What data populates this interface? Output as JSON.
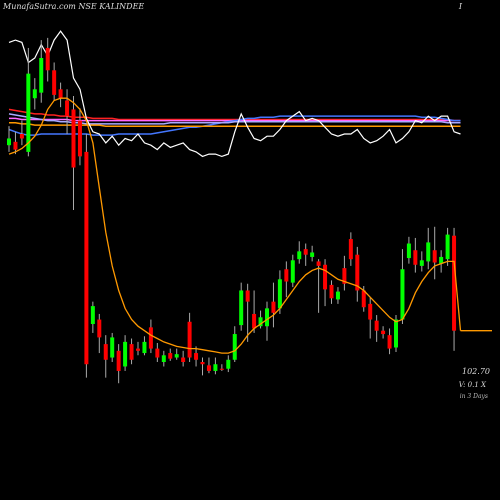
{
  "header": {
    "title": "MunafaSutra.com NSE KALINDEE",
    "corner_label": "I"
  },
  "footer": {
    "price_text": "102.70",
    "volume_text": "V: 0.1 X",
    "days_text": "in 3 Days"
  },
  "colors": {
    "background": "#000000",
    "up": "#00ff00",
    "down": "#ff0000",
    "wick": "#aaaaaa",
    "moving_average": "#ff9900"
  },
  "chart_data": {
    "type": "candlestick",
    "title": "MunafaSutra.com NSE KALINDEE",
    "last_price": 102.7,
    "volume_ratio_label": "V: 0.1 X",
    "horizon_label": "in 3 Days",
    "candles": [
      {
        "o": 118,
        "c": 124,
        "h": 135,
        "l": 112
      },
      {
        "o": 121,
        "c": 114,
        "h": 130,
        "l": 110
      },
      {
        "o": 128,
        "c": 124,
        "h": 140,
        "l": 118
      },
      {
        "o": 112,
        "c": 182,
        "h": 205,
        "l": 108
      },
      {
        "o": 160,
        "c": 168,
        "h": 178,
        "l": 150
      },
      {
        "o": 165,
        "c": 196,
        "h": 212,
        "l": 156
      },
      {
        "o": 205,
        "c": 185,
        "h": 214,
        "l": 175
      },
      {
        "o": 185,
        "c": 163,
        "h": 192,
        "l": 158
      },
      {
        "o": 168,
        "c": 160,
        "h": 174,
        "l": 152
      },
      {
        "o": 158,
        "c": 144,
        "h": 168,
        "l": 128
      },
      {
        "o": 150,
        "c": 98,
        "h": 162,
        "l": 60
      },
      {
        "o": 140,
        "c": 108,
        "h": 151,
        "l": 100
      },
      {
        "o": 112,
        "c": -78,
        "h": 128,
        "l": -90
      },
      {
        "o": -42,
        "c": -26,
        "h": -22,
        "l": -50
      },
      {
        "o": -38,
        "c": -54,
        "h": -33,
        "l": -68
      },
      {
        "o": -60,
        "c": -74,
        "h": -52,
        "l": -90
      },
      {
        "o": -72,
        "c": -54,
        "h": -50,
        "l": -76
      },
      {
        "o": -66,
        "c": -84,
        "h": -60,
        "l": -95
      },
      {
        "o": -80,
        "c": -58,
        "h": -52,
        "l": -84
      },
      {
        "o": -60,
        "c": -74,
        "h": -55,
        "l": -78
      },
      {
        "o": -64,
        "c": -66,
        "h": -58,
        "l": -70
      },
      {
        "o": -68,
        "c": -58,
        "h": -53,
        "l": -70
      },
      {
        "o": -45,
        "c": -64,
        "h": -38,
        "l": -68
      },
      {
        "o": -64,
        "c": -72,
        "h": -59,
        "l": -76
      },
      {
        "o": -76,
        "c": -70,
        "h": -66,
        "l": -80
      },
      {
        "o": -68,
        "c": -73,
        "h": -64,
        "l": -75
      },
      {
        "o": -72,
        "c": -69,
        "h": -64,
        "l": -74
      },
      {
        "o": -72,
        "c": -76,
        "h": -66,
        "l": -80
      },
      {
        "o": -40,
        "c": -72,
        "h": -32,
        "l": -76
      },
      {
        "o": -68,
        "c": -74,
        "h": -62,
        "l": -80
      },
      {
        "o": -76,
        "c": -78,
        "h": -72,
        "l": -88
      },
      {
        "o": -79,
        "c": -84,
        "h": -72,
        "l": -86
      },
      {
        "o": -84,
        "c": -78,
        "h": -72,
        "l": -87
      },
      {
        "o": -82,
        "c": -83,
        "h": -78,
        "l": -84
      },
      {
        "o": -82,
        "c": -74,
        "h": -70,
        "l": -85
      },
      {
        "o": -74,
        "c": -51,
        "h": -44,
        "l": -76
      },
      {
        "o": -43,
        "c": -12,
        "h": -5,
        "l": -48
      },
      {
        "o": -12,
        "c": -22,
        "h": -6,
        "l": -58
      },
      {
        "o": -33,
        "c": -46,
        "h": -12,
        "l": -50
      },
      {
        "o": -44,
        "c": -36,
        "h": -30,
        "l": -46
      },
      {
        "o": -44,
        "c": -28,
        "h": -22,
        "l": -57
      },
      {
        "o": -22,
        "c": -32,
        "h": -5,
        "l": -45
      },
      {
        "o": -28,
        "c": -2,
        "h": 6,
        "l": -33
      },
      {
        "o": 7,
        "c": -4,
        "h": 14,
        "l": -18
      },
      {
        "o": -5,
        "c": 15,
        "h": 20,
        "l": -9
      },
      {
        "o": 16,
        "c": 23,
        "h": 32,
        "l": 12
      },
      {
        "o": 25,
        "c": 20,
        "h": 30,
        "l": 10
      },
      {
        "o": 18,
        "c": 22,
        "h": 28,
        "l": 14
      },
      {
        "o": 14,
        "c": 10,
        "h": 16,
        "l": -32
      },
      {
        "o": 11,
        "c": -11,
        "h": 16,
        "l": -26
      },
      {
        "o": -7,
        "c": -19,
        "h": -3,
        "l": -24
      },
      {
        "o": -20,
        "c": -13,
        "h": -9,
        "l": -24
      },
      {
        "o": 8,
        "c": -6,
        "h": 19,
        "l": -12
      },
      {
        "o": 34,
        "c": 16,
        "h": 40,
        "l": 10
      },
      {
        "o": 20,
        "c": -12,
        "h": 27,
        "l": -22
      },
      {
        "o": -12,
        "c": -27,
        "h": -8,
        "l": -31
      },
      {
        "o": -24,
        "c": -38,
        "h": -18,
        "l": -55
      },
      {
        "o": -39,
        "c": -48,
        "h": -34,
        "l": -58
      },
      {
        "o": -48,
        "c": -51,
        "h": -44,
        "l": -55
      },
      {
        "o": -52,
        "c": -64,
        "h": -46,
        "l": -69
      },
      {
        "o": -63,
        "c": -38,
        "h": -34,
        "l": -67
      },
      {
        "o": -38,
        "c": 7,
        "h": 25,
        "l": -42
      },
      {
        "o": 17,
        "c": 30,
        "h": 36,
        "l": 12
      },
      {
        "o": 24,
        "c": 11,
        "h": 35,
        "l": 4
      },
      {
        "o": 10,
        "c": 15,
        "h": 23,
        "l": 5
      },
      {
        "o": 14,
        "c": 31,
        "h": 44,
        "l": 7
      },
      {
        "o": 24,
        "c": 13,
        "h": 45,
        "l": -2
      },
      {
        "o": 12,
        "c": 18,
        "h": 24,
        "l": 4
      },
      {
        "o": 16,
        "c": 38,
        "h": 44,
        "l": 10
      },
      {
        "o": 37,
        "c": -48,
        "h": 44,
        "l": -66
      }
    ],
    "moving_average": [
      110,
      112,
      115,
      120,
      126,
      136,
      150,
      158,
      160,
      160,
      156,
      150,
      140,
      120,
      80,
      40,
      10,
      -12,
      -28,
      -38,
      -44,
      -48,
      -52,
      -55,
      -58,
      -60,
      -62,
      -63,
      -64,
      -64,
      -65,
      -66,
      -67,
      -68,
      -68,
      -66,
      -60,
      -52,
      -46,
      -42,
      -38,
      -34,
      -28,
      -20,
      -12,
      -4,
      2,
      6,
      8,
      6,
      2,
      -2,
      -4,
      -6,
      -8,
      -12,
      -18,
      -24,
      -30,
      -36,
      -40,
      -38,
      -28,
      -14,
      -4,
      4,
      10,
      12,
      14,
      14,
      -48
    ],
    "ma_projection": -48,
    "price_overlay_line": [
      210,
      212,
      210,
      192,
      196,
      208,
      198,
      212,
      220,
      212,
      178,
      168,
      142,
      130,
      128,
      120,
      126,
      118,
      124,
      122,
      128,
      120,
      118,
      114,
      120,
      116,
      118,
      120,
      114,
      112,
      108,
      110,
      110,
      108,
      110,
      130,
      146,
      134,
      124,
      122,
      126,
      126,
      132,
      140,
      144,
      148,
      140,
      142,
      140,
      134,
      128,
      126,
      128,
      128,
      132,
      124,
      120,
      122,
      126,
      132,
      120,
      124,
      130,
      140,
      138,
      144,
      140,
      144,
      144,
      130,
      128
    ],
    "moving_average_bands": [
      {
        "color": "#ff2020",
        "values": [
          150,
          149,
          148,
          147,
          146,
          146,
          145,
          145,
          144,
          144,
          143,
          143,
          143,
          142,
          142,
          142,
          142,
          141,
          141,
          141,
          141,
          141,
          141,
          141,
          141,
          141,
          141,
          141,
          141,
          141,
          141,
          141,
          141,
          141,
          141,
          141,
          141,
          141,
          141,
          141,
          141,
          141,
          141,
          141,
          141,
          141,
          141,
          141,
          141,
          141,
          141,
          141,
          141,
          141,
          141,
          141,
          141,
          141,
          141,
          141,
          141,
          141,
          141,
          141,
          141,
          141,
          141,
          141,
          141,
          140,
          140
        ]
      },
      {
        "color": "#ff66ff",
        "values": [
          142,
          142,
          141,
          141,
          141,
          141,
          141,
          141,
          141,
          141,
          140,
          140,
          140,
          140,
          140,
          140,
          140,
          140,
          140,
          140,
          140,
          140,
          140,
          140,
          140,
          140,
          140,
          140,
          140,
          140,
          140,
          140,
          140,
          140,
          140,
          140,
          140,
          140,
          140,
          140,
          140,
          140,
          140,
          140,
          140,
          140,
          140,
          140,
          140,
          140,
          140,
          140,
          140,
          140,
          140,
          140,
          140,
          140,
          140,
          140,
          140,
          140,
          140,
          140,
          140,
          140,
          140,
          140,
          140,
          140,
          140
        ]
      },
      {
        "color": "#4477ff",
        "values": [
          132,
          130,
          128,
          127,
          127,
          128,
          128,
          128,
          128,
          128,
          128,
          128,
          128,
          127,
          127,
          127,
          127,
          128,
          128,
          128,
          128,
          128,
          128,
          129,
          130,
          131,
          132,
          133,
          134,
          134,
          135,
          136,
          137,
          138,
          139,
          140,
          141,
          142,
          142,
          143,
          143,
          143,
          144,
          144,
          144,
          144,
          144,
          144,
          144,
          144,
          144,
          144,
          144,
          144,
          144,
          144,
          144,
          144,
          144,
          144,
          144,
          144,
          144,
          144,
          143,
          143,
          143,
          142,
          141,
          140,
          140
        ]
      },
      {
        "color": "#aaaaff",
        "values": [
          146,
          145,
          144,
          143,
          142,
          141,
          140,
          140,
          139,
          139,
          138,
          138,
          137,
          137,
          137,
          137,
          137,
          137,
          137,
          137,
          137,
          137,
          137,
          137,
          137,
          138,
          138,
          138,
          138,
          138,
          138,
          138,
          138,
          138,
          138,
          139,
          139,
          139,
          139,
          139,
          139,
          139,
          139,
          139,
          139,
          139,
          139,
          139,
          139,
          139,
          139,
          139,
          139,
          139,
          139,
          139,
          139,
          139,
          139,
          139,
          139,
          139,
          139,
          139,
          139,
          139,
          139,
          139,
          138,
          138,
          138
        ]
      },
      {
        "color": "#ff9900",
        "values": [
          138,
          138,
          137,
          137,
          136,
          136,
          136,
          136,
          136,
          136,
          136,
          136,
          136,
          136,
          136,
          135,
          135,
          135,
          135,
          135,
          135,
          135,
          135,
          135,
          135,
          135,
          135,
          135,
          135,
          135,
          135,
          135,
          135,
          135,
          135,
          135,
          135,
          135,
          135,
          135,
          135,
          135,
          135,
          135,
          135,
          135,
          135,
          135,
          135,
          135,
          135,
          135,
          135,
          135,
          135,
          135,
          135,
          135,
          135,
          135,
          135,
          135,
          135,
          135,
          135,
          135,
          135,
          135,
          135,
          135,
          135
        ]
      }
    ],
    "ylim": [
      -110,
      230
    ]
  }
}
